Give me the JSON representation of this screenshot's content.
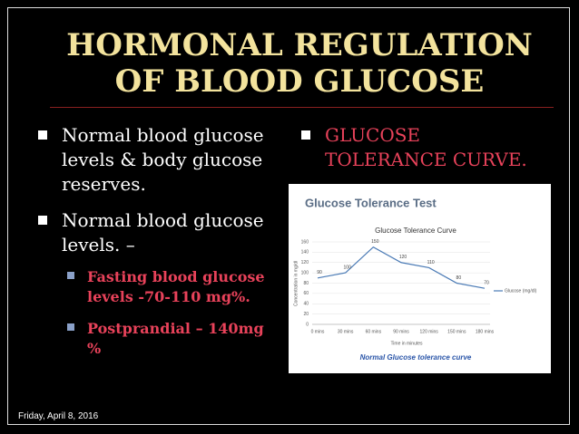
{
  "slide": {
    "title": "HORMONAL REGULATION OF BLOOD GLUCOSE",
    "left_bullets": [
      "Normal blood glucose levels & body glucose reserves.",
      "Normal blood glucose levels. –"
    ],
    "sub_bullets": [
      "Fasting blood glucose levels -70-110 mg%.",
      "Postprandial – 140mg %"
    ],
    "right_bullet": "GLUCOSE TOLERANCE CURVE.",
    "footer": "Friday, April 8, 2016"
  },
  "chart_data": {
    "type": "line",
    "heading": "Glucose Tolerance Test",
    "title": "Glucose Tolerance Curve",
    "caption": "Normal Glucose tolerance curve",
    "x_label": "Time in minutes",
    "y_label": "Concentration in mg/dl",
    "categories": [
      "0 mins",
      "30 mins",
      "60 mins",
      "90 mins",
      "120 mins",
      "150 mins",
      "180 mins"
    ],
    "series": [
      {
        "name": "Glucose (mg/dl)",
        "color": "#4a7ab5",
        "values": [
          90,
          100,
          150,
          120,
          110,
          80,
          70
        ]
      }
    ],
    "ylim": [
      0,
      160
    ],
    "yticks": [
      0,
      20,
      40,
      60,
      80,
      100,
      120,
      140,
      160
    ],
    "grid": true
  }
}
